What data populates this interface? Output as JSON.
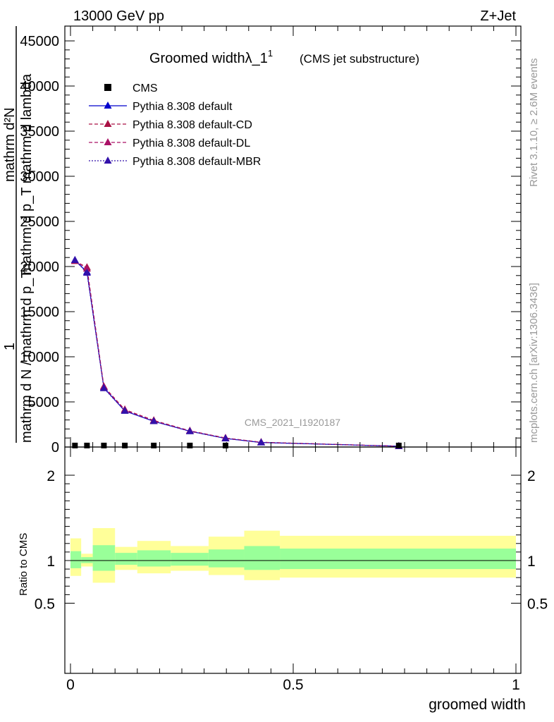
{
  "header": {
    "energy": "13000 GeV pp",
    "process": "Z+Jet",
    "title_main": "Groomed widthλ_1",
    "title_sup": "1",
    "title_paren": "(CMS jet substructure)",
    "watermark": "CMS_2021_I1920187",
    "side_rivet": "Rivet 3.1.10, ≥ 2.6M events",
    "side_mcplots": "mcplots.cern.ch [arXiv:1306.3436]"
  },
  "ylabel_main": {
    "numerator": "mathrm d²N",
    "denominator": "mathrm d p_T mathrm d lambda",
    "prefix_num": "1",
    "prefix_den": "mathrm d N / mathrm d p_T",
    "sub_T1": "T",
    "sub_T2": "T"
  },
  "ylabel_ratio": "Ratio to CMS",
  "xlabel": "groomed width",
  "legend": [
    {
      "label": "CMS",
      "color": "#000000",
      "marker": "square",
      "line": "none"
    },
    {
      "label": "Pythia 8.308 default",
      "color": "#0000cc",
      "marker": "triangle",
      "line": "solid"
    },
    {
      "label": "Pythia 8.308 default-CD",
      "color": "#aa1144",
      "marker": "triangle",
      "line": "dashed"
    },
    {
      "label": "Pythia 8.308 default-DL",
      "color": "#aa1166",
      "marker": "triangle",
      "line": "dashed"
    },
    {
      "label": "Pythia 8.308 default-MBR",
      "color": "#3311aa",
      "marker": "triangle",
      "line": "dotted"
    }
  ],
  "chart_data": {
    "type": "line",
    "x_range": [
      0,
      1
    ],
    "y_range_main": [
      0,
      45000
    ],
    "y_range_ratio": [
      0.35,
      2.25
    ],
    "y_ticks_main": [
      "0",
      "5000",
      "10000",
      "15000",
      "20000",
      "25000",
      "30000",
      "35000",
      "40000",
      "45000"
    ],
    "y_ticks_ratio": [
      "0.5",
      "1",
      "2"
    ],
    "x_ticks": [
      "0",
      "0.5",
      "1"
    ],
    "cms": {
      "x": [
        0.01,
        0.037,
        0.075,
        0.122,
        0.187,
        0.268,
        0.348,
        0.737
      ],
      "y": [
        10,
        10,
        10,
        10,
        10,
        10,
        10,
        10
      ]
    },
    "series": [
      {
        "name": "Pythia 8.308 default",
        "x": [
          0.01,
          0.037,
          0.075,
          0.122,
          0.187,
          0.268,
          0.348,
          0.428,
          0.737
        ],
        "y": [
          20700,
          19400,
          6550,
          4000,
          2850,
          1750,
          950,
          500,
          90
        ]
      },
      {
        "name": "Pythia 8.308 default-CD",
        "x": [
          0.01,
          0.037,
          0.075,
          0.122,
          0.187,
          0.268,
          0.348,
          0.428,
          0.737
        ],
        "y": [
          20600,
          19900,
          6700,
          4150,
          2950,
          1800,
          1000,
          530,
          90
        ]
      },
      {
        "name": "Pythia 8.308 default-DL",
        "x": [
          0.01,
          0.037,
          0.075,
          0.122,
          0.187,
          0.268,
          0.348,
          0.428,
          0.737
        ],
        "y": [
          20650,
          19750,
          6650,
          4100,
          2900,
          1780,
          980,
          520,
          90
        ]
      },
      {
        "name": "Pythia 8.308 default-MBR",
        "x": [
          0.01,
          0.037,
          0.075,
          0.122,
          0.187,
          0.268,
          0.348,
          0.428,
          0.737
        ],
        "y": [
          20700,
          19300,
          6500,
          4000,
          2850,
          1740,
          950,
          500,
          90
        ]
      }
    ],
    "ratio_bands": {
      "bins": [
        [
          0,
          0.024
        ],
        [
          0.024,
          0.05
        ],
        [
          0.05,
          0.1
        ],
        [
          0.1,
          0.15
        ],
        [
          0.15,
          0.225
        ],
        [
          0.225,
          0.31
        ],
        [
          0.31,
          0.39
        ],
        [
          0.39,
          0.47
        ],
        [
          0.47,
          1
        ]
      ],
      "stat_lo": [
        0.91,
        0.97,
        0.88,
        0.95,
        0.93,
        0.94,
        0.92,
        0.89,
        0.9
      ],
      "stat_hi": [
        1.11,
        1.04,
        1.18,
        1.09,
        1.12,
        1.09,
        1.13,
        1.17,
        1.14
      ],
      "total_lo": [
        0.82,
        0.93,
        0.74,
        0.89,
        0.85,
        0.88,
        0.83,
        0.77,
        0.8
      ],
      "total_hi": [
        1.26,
        1.08,
        1.38,
        1.16,
        1.23,
        1.17,
        1.28,
        1.35,
        1.29
      ]
    }
  },
  "colors": {
    "stat_band": "#99ff99",
    "total_band": "#ffff99",
    "watermark": "#999999"
  }
}
